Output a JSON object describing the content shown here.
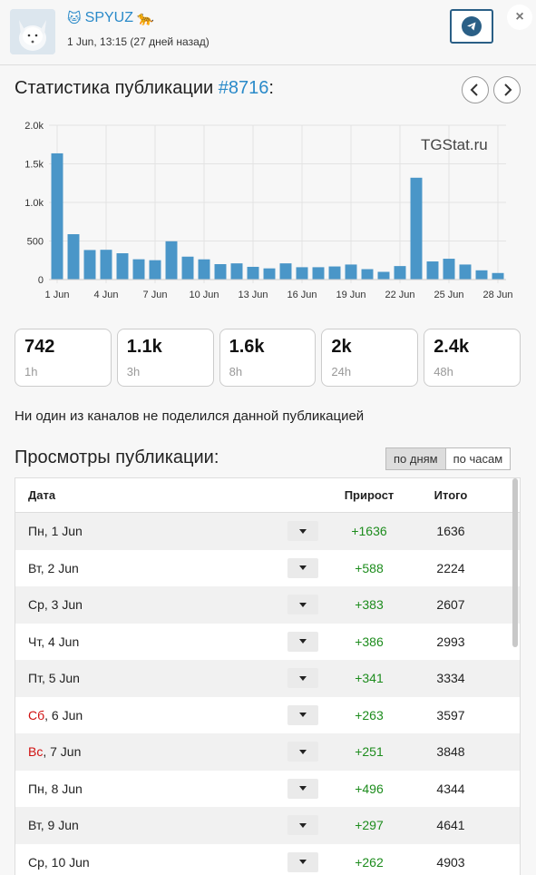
{
  "header": {
    "channel_name": "SPYUZ",
    "date_text": "1 Jun, 13:15 (27 дней назад)",
    "close_label": "×"
  },
  "stats": {
    "title_prefix": "Статистика публикации ",
    "post_number": "#8716",
    "title_suffix": ":",
    "watermark": "TGStat.ru"
  },
  "chart_data": {
    "type": "bar",
    "categories": [
      "1 Jun",
      "2 Jun",
      "3 Jun",
      "4 Jun",
      "5 Jun",
      "6 Jun",
      "7 Jun",
      "8 Jun",
      "9 Jun",
      "10 Jun",
      "11 Jun",
      "12 Jun",
      "13 Jun",
      "14 Jun",
      "15 Jun",
      "16 Jun",
      "17 Jun",
      "18 Jun",
      "19 Jun",
      "20 Jun",
      "21 Jun",
      "22 Jun",
      "23 Jun",
      "24 Jun",
      "25 Jun",
      "26 Jun",
      "27 Jun",
      "28 Jun"
    ],
    "values": [
      1636,
      588,
      383,
      386,
      341,
      263,
      251,
      496,
      297,
      262,
      200,
      210,
      165,
      145,
      210,
      160,
      160,
      170,
      195,
      135,
      100,
      175,
      1320,
      235,
      270,
      195,
      120,
      85
    ],
    "tick_labels": [
      "1 Jun",
      "4 Jun",
      "7 Jun",
      "10 Jun",
      "13 Jun",
      "16 Jun",
      "19 Jun",
      "22 Jun",
      "25 Jun",
      "28 Jun"
    ],
    "y_ticks": [
      "0",
      "500",
      "1.0k",
      "1.5k",
      "2.0k"
    ],
    "ylim": [
      0,
      2000
    ],
    "bar_color": "#4a96c8",
    "grid": true
  },
  "cards": [
    {
      "value": "742",
      "label": "1h"
    },
    {
      "value": "1.1k",
      "label": "3h"
    },
    {
      "value": "1.6k",
      "label": "8h"
    },
    {
      "value": "2k",
      "label": "24h"
    },
    {
      "value": "2.4k",
      "label": "48h"
    }
  ],
  "no_share_text": "Ни один из каналов не поделился данной публикацией",
  "views": {
    "title": "Просмотры публикации:",
    "toggle_days": "по дням",
    "toggle_hours": "по часам",
    "col_date": "Дата",
    "col_gain": "Прирост",
    "col_total": "Итого",
    "rows": [
      {
        "day": "Пн",
        "date": ", 1 Jun",
        "gain": "+1636",
        "total": "1636",
        "weekend": false
      },
      {
        "day": "Вт",
        "date": ", 2 Jun",
        "gain": "+588",
        "total": "2224",
        "weekend": false
      },
      {
        "day": "Ср",
        "date": ", 3 Jun",
        "gain": "+383",
        "total": "2607",
        "weekend": false
      },
      {
        "day": "Чт",
        "date": ", 4 Jun",
        "gain": "+386",
        "total": "2993",
        "weekend": false
      },
      {
        "day": "Пт",
        "date": ", 5 Jun",
        "gain": "+341",
        "total": "3334",
        "weekend": false
      },
      {
        "day": "Сб",
        "date": ", 6 Jun",
        "gain": "+263",
        "total": "3597",
        "weekend": true
      },
      {
        "day": "Вс",
        "date": ", 7 Jun",
        "gain": "+251",
        "total": "3848",
        "weekend": true
      },
      {
        "day": "Пн",
        "date": ", 8 Jun",
        "gain": "+496",
        "total": "4344",
        "weekend": false
      },
      {
        "day": "Вт",
        "date": ", 9 Jun",
        "gain": "+297",
        "total": "4641",
        "weekend": false
      },
      {
        "day": "Ср",
        "date": ", 10 Jun",
        "gain": "+262",
        "total": "4903",
        "weekend": false
      }
    ]
  }
}
